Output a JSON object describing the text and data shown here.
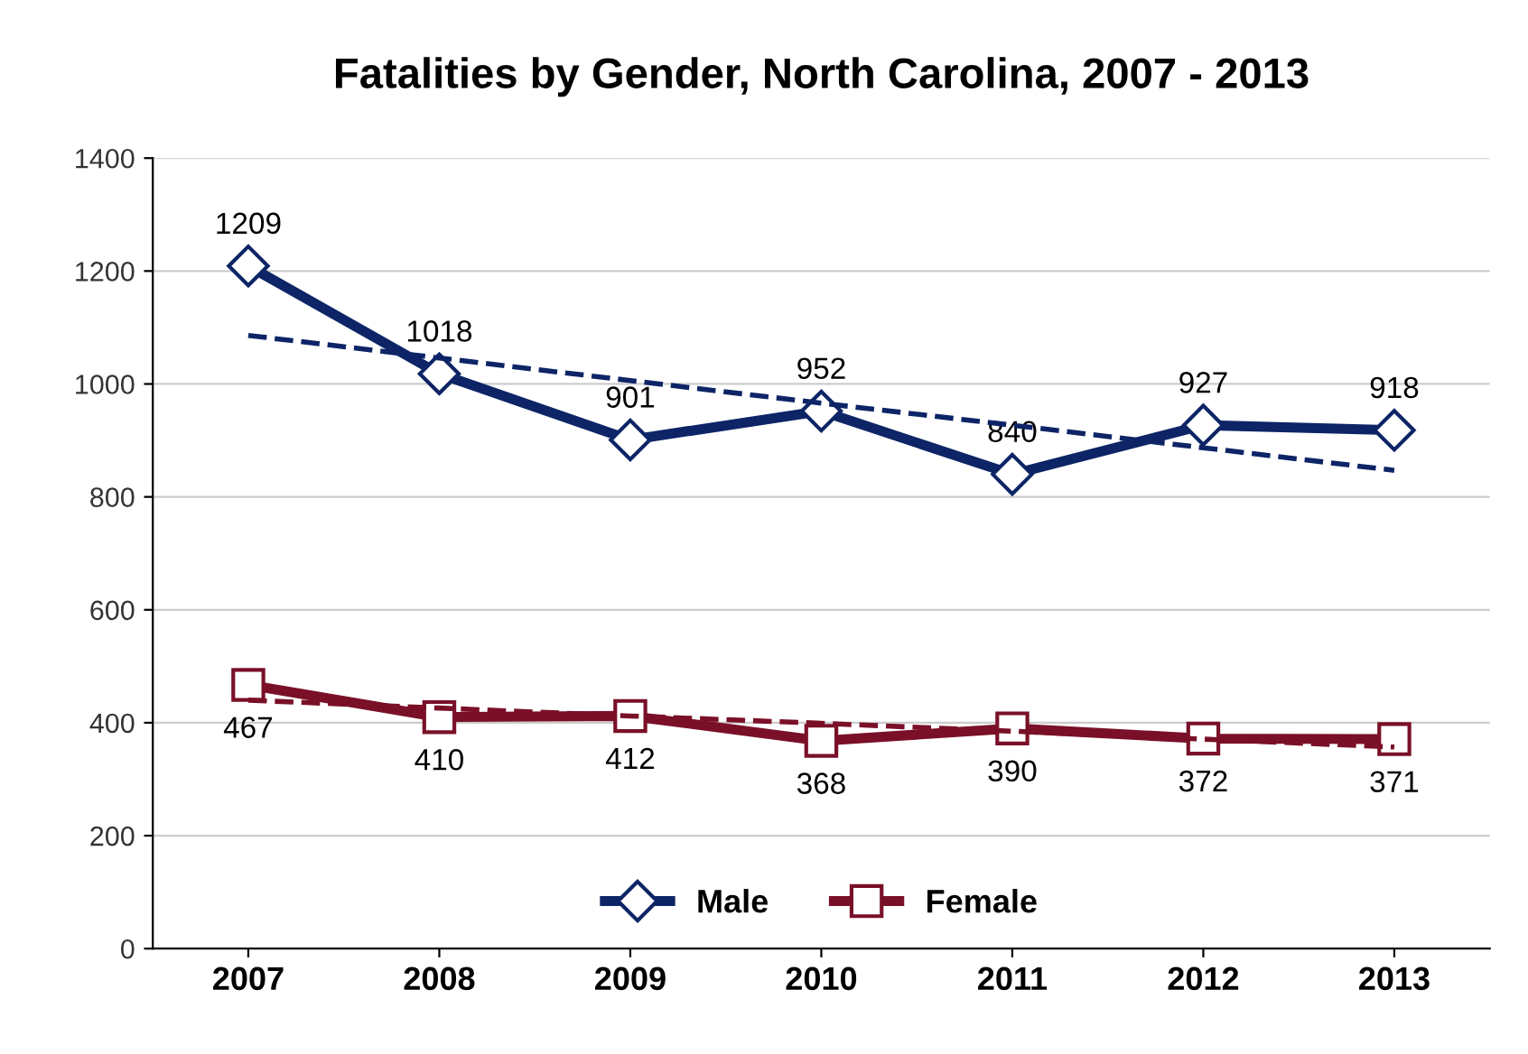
{
  "chart_data": {
    "type": "line",
    "title": "Fatalities by Gender, North Carolina, 2007 - 2013",
    "categories": [
      "2007",
      "2008",
      "2009",
      "2010",
      "2011",
      "2012",
      "2013"
    ],
    "ylim": [
      0,
      1400
    ],
    "yticks": [
      0,
      200,
      400,
      600,
      800,
      1000,
      1200,
      1400
    ],
    "grid": "y",
    "legend": "bottom",
    "series": [
      {
        "name": "Male",
        "color": "#0d2566",
        "marker": "diamond",
        "values": [
          1209,
          1018,
          901,
          952,
          840,
          927,
          918
        ],
        "value_labels": [
          "1209",
          "1018",
          "901",
          "952",
          "840",
          "927",
          "918"
        ]
      },
      {
        "name": "Female",
        "color": "#7a1028",
        "marker": "square",
        "values": [
          467,
          410,
          412,
          368,
          390,
          372,
          371
        ],
        "value_labels": [
          "467",
          "410",
          "412",
          "368",
          "390",
          "372",
          "371"
        ]
      },
      {
        "type": "line",
        "color": "#0d2566",
        "line_style": "dashed",
        "marker": "none",
        "values": [
          1086,
          1046,
          1006,
          966,
          927,
          887,
          847
        ]
      },
      {
        "type": "line",
        "color": "#7a1028",
        "line_style": "dashed",
        "marker": "none",
        "values": [
          440,
          426,
          412,
          399,
          385,
          371,
          357
        ]
      }
    ]
  }
}
